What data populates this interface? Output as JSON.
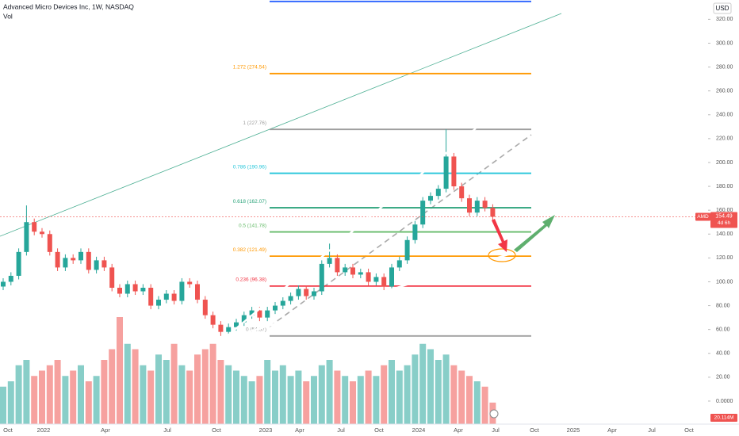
{
  "chart_data": {
    "type": "candlestick",
    "title": "Advanced Micro Devices Inc, 1W, NASDAQ",
    "subtitle": "Vol",
    "currency": "USD",
    "symbol": "AMD",
    "countdown": "4d 6h",
    "up_color": "#26a69a",
    "down_color": "#ef5350",
    "open": [
      96,
      100,
      105,
      125,
      150,
      142,
      140,
      125,
      112,
      120,
      118,
      125,
      110,
      118,
      112,
      95,
      90,
      98,
      92,
      95,
      80,
      85,
      90,
      84,
      100,
      98,
      85,
      72,
      64,
      58,
      62,
      66,
      72,
      76,
      70,
      76,
      80,
      84,
      88,
      94,
      88,
      92,
      115,
      120,
      108,
      112,
      106,
      108,
      100,
      104,
      96,
      112,
      118,
      135,
      148,
      168,
      172,
      178,
      205,
      180,
      170,
      158,
      168,
      162
    ],
    "high": [
      103,
      108,
      128,
      164,
      153,
      145,
      143,
      128,
      123,
      123,
      128,
      128,
      121,
      121,
      115,
      98,
      101,
      101,
      98,
      98,
      88,
      93,
      93,
      103,
      103,
      101,
      88,
      75,
      67,
      65,
      69,
      75,
      79,
      79,
      79,
      83,
      87,
      91,
      97,
      97,
      95,
      118,
      132,
      123,
      115,
      115,
      111,
      111,
      107,
      107,
      115,
      121,
      138,
      151,
      171,
      175,
      181,
      227.76,
      208,
      183,
      173,
      171,
      171,
      165
    ],
    "low": [
      93,
      97,
      102,
      122,
      139,
      137,
      122,
      109,
      109,
      115,
      115,
      107,
      107,
      109,
      92,
      87,
      87,
      89,
      89,
      77,
      77,
      82,
      81,
      81,
      95,
      82,
      69,
      61,
      54.57,
      55,
      59,
      63,
      69,
      67,
      67,
      73,
      77,
      81,
      85,
      85,
      85,
      89,
      112,
      105,
      105,
      103,
      103,
      97,
      97,
      93,
      93,
      109,
      115,
      132,
      145,
      165,
      169,
      175,
      177,
      167,
      155,
      155,
      159,
      151.49
    ],
    "close": [
      100,
      105,
      125,
      150,
      142,
      140,
      125,
      112,
      120,
      118,
      125,
      110,
      118,
      112,
      95,
      90,
      98,
      92,
      95,
      80,
      85,
      90,
      84,
      100,
      98,
      85,
      72,
      64,
      58,
      62,
      66,
      72,
      76,
      70,
      76,
      80,
      84,
      88,
      94,
      88,
      92,
      115,
      120,
      108,
      112,
      106,
      108,
      100,
      104,
      96,
      112,
      118,
      135,
      148,
      168,
      172,
      178,
      205,
      180,
      170,
      158,
      168,
      162,
      154.49
    ],
    "volume": [
      35,
      40,
      55,
      60,
      45,
      50,
      55,
      60,
      45,
      50,
      55,
      40,
      45,
      60,
      70,
      100,
      75,
      70,
      55,
      50,
      65,
      60,
      75,
      55,
      50,
      65,
      70,
      75,
      60,
      55,
      50,
      45,
      40,
      45,
      60,
      50,
      55,
      45,
      50,
      40,
      45,
      55,
      60,
      50,
      45,
      40,
      45,
      50,
      45,
      55,
      60,
      50,
      55,
      65,
      75,
      70,
      60,
      65,
      55,
      50,
      45,
      40,
      35,
      20.114
    ],
    "volume_lim": [
      0,
      100
    ],
    "last_volume_label": "20.114M",
    "ylim": [
      -19.3,
      336.2
    ],
    "yticks": [
      {
        "value": 0,
        "label": "0.0000"
      },
      {
        "value": 20,
        "label": "20.00"
      },
      {
        "value": 40,
        "label": "40.00"
      },
      {
        "value": 60,
        "label": "60.00"
      },
      {
        "value": 80,
        "label": "80.00"
      },
      {
        "value": 100,
        "label": "100.00"
      },
      {
        "value": 120,
        "label": "120.00"
      },
      {
        "value": 140,
        "label": "140.00"
      },
      {
        "value": 160,
        "label": "160.00"
      },
      {
        "value": 180,
        "label": "180.00"
      },
      {
        "value": 200,
        "label": "200.00"
      },
      {
        "value": 220,
        "label": "220.00"
      },
      {
        "value": 240,
        "label": "240.00"
      },
      {
        "value": 260,
        "label": "260.00"
      },
      {
        "value": 280,
        "label": "280.00"
      },
      {
        "value": 300,
        "label": "300.00"
      },
      {
        "value": 320,
        "label": "320.00"
      }
    ],
    "xtick_labels": [
      "Oct",
      "2022",
      "Apr",
      "Jul",
      "Oct",
      "2023",
      "Apr",
      "Jul",
      "Oct",
      "2024",
      "Apr",
      "Jul",
      "Oct",
      "2025",
      "Apr",
      "Jul",
      "Oct"
    ],
    "fib_levels": [
      {
        "value": 335,
        "color": "#2962ff"
      },
      {
        "value": 274.54,
        "label": "1.272 (274.54)",
        "color": "#ff9800"
      },
      {
        "value": 227.76,
        "label": "1 (227.76)",
        "color": "#9e9e9e"
      },
      {
        "value": 190.96,
        "label": "0.786 (190.96)",
        "color": "#26c6da"
      },
      {
        "value": 162.07,
        "label": "0.618 (162.07)",
        "color": "#2aa37a"
      },
      {
        "value": 141.78,
        "label": "0.5 (141.78)",
        "color": "#66bb6a"
      },
      {
        "value": 121.49,
        "label": "0.382 (121.49)",
        "color": "#ff9800"
      },
      {
        "value": 96.38,
        "label": "0.236 (96.38)",
        "color": "#f23645"
      },
      {
        "value": 54.57,
        "label": "0 (54.57)",
        "color": "#9e9e9e"
      }
    ],
    "grid": false
  }
}
